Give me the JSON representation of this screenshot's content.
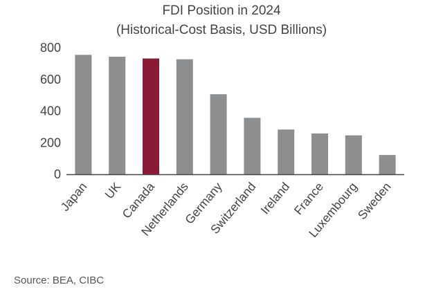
{
  "chart_data": {
    "type": "bar",
    "title": "FDI Position in 2024",
    "subtitle": "(Historical-Cost Basis, USD Billions)",
    "categories": [
      "Japan",
      "UK",
      "Canada",
      "Netherlands",
      "Germany",
      "Switzerland",
      "Ireland",
      "France",
      "Luxembourg",
      "Sweden"
    ],
    "values": [
      755,
      743,
      732,
      727,
      506,
      357,
      283,
      258,
      246,
      122
    ],
    "highlight": "Canada",
    "colors": {
      "default": "#8c8e90",
      "highlight": "#8b1a36",
      "axis": "#444444"
    },
    "ylim": [
      0,
      800
    ],
    "yticks": [
      0,
      200,
      400,
      600,
      800
    ],
    "xlabel": "",
    "ylabel": "",
    "grid": false,
    "legend": "none"
  },
  "footer": {
    "source": "Source: BEA, CIBC"
  }
}
